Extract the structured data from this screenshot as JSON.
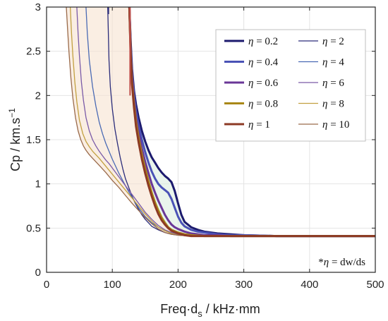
{
  "chart_data": {
    "type": "line",
    "xlabel_main": "Freq·d",
    "xlabel_sub": "s",
    "xlabel_rest": " / kHz·mm",
    "ylabel_main": "Cp / km.s",
    "ylabel_sup": "−1",
    "xlim": [
      0,
      500
    ],
    "ylim": [
      0,
      3
    ],
    "xticks": [
      "0",
      "100",
      "200",
      "300",
      "400",
      "500"
    ],
    "yticks": [
      "0",
      "0.5",
      "1",
      "1.5",
      "2",
      "2.5",
      "3"
    ],
    "grid": true,
    "legend_position": "top-right",
    "annotation": {
      "prefix": "*",
      "symbol": "η",
      "text": " = dw/ds"
    },
    "series": [
      {
        "name": "η = 0.2",
        "eta": "0.2",
        "color": "#1c1a6e",
        "width": 3.0,
        "x": [
          126,
          128,
          130,
          133,
          136,
          140,
          145,
          150,
          155,
          160,
          165,
          170,
          175,
          180,
          185,
          190,
          195,
          200,
          205,
          210,
          220,
          230,
          240,
          250,
          260,
          280,
          300,
          350,
          400,
          450,
          500
        ],
        "y": [
          3.0,
          2.6,
          2.3,
          2.05,
          1.9,
          1.75,
          1.6,
          1.48,
          1.38,
          1.3,
          1.24,
          1.18,
          1.13,
          1.09,
          1.06,
          1.02,
          0.92,
          0.78,
          0.65,
          0.57,
          0.51,
          0.48,
          0.46,
          0.45,
          0.44,
          0.43,
          0.42,
          0.41,
          0.41,
          0.41,
          0.41
        ]
      },
      {
        "name": "η = 0.4",
        "eta": "0.4",
        "color": "#4a52b6",
        "width": 3.0,
        "x": [
          126,
          128,
          130,
          133,
          136,
          140,
          145,
          150,
          155,
          160,
          165,
          170,
          175,
          180,
          185,
          190,
          195,
          200,
          205,
          210,
          220,
          230,
          240,
          260,
          280,
          300,
          350,
          400,
          450,
          500
        ],
        "y": [
          3.0,
          2.55,
          2.25,
          2.0,
          1.82,
          1.66,
          1.5,
          1.36,
          1.24,
          1.14,
          1.06,
          1.0,
          0.96,
          0.93,
          0.9,
          0.83,
          0.73,
          0.63,
          0.56,
          0.52,
          0.48,
          0.46,
          0.45,
          0.43,
          0.42,
          0.42,
          0.41,
          0.41,
          0.41,
          0.41
        ]
      },
      {
        "name": "η = 0.6",
        "eta": "0.6",
        "color": "#6a3797",
        "width": 3.0,
        "x": [
          126,
          128,
          130,
          133,
          136,
          140,
          145,
          150,
          155,
          160,
          165,
          170,
          175,
          180,
          185,
          190,
          195,
          200,
          210,
          220,
          230,
          240,
          260,
          280,
          300,
          350,
          400,
          450,
          500
        ],
        "y": [
          3.0,
          2.5,
          2.2,
          1.95,
          1.75,
          1.58,
          1.4,
          1.25,
          1.12,
          1.0,
          0.9,
          0.81,
          0.73,
          0.65,
          0.59,
          0.54,
          0.51,
          0.49,
          0.46,
          0.44,
          0.43,
          0.42,
          0.42,
          0.41,
          0.41,
          0.41,
          0.41,
          0.41,
          0.41
        ]
      },
      {
        "name": "η = 0.8",
        "eta": "0.8",
        "color": "#a98818",
        "width": 3.0,
        "x": [
          126,
          128,
          130,
          133,
          136,
          140,
          145,
          150,
          155,
          160,
          165,
          170,
          175,
          180,
          185,
          190,
          200,
          210,
          220,
          240,
          260,
          300,
          350,
          400,
          450,
          500
        ],
        "y": [
          3.0,
          2.45,
          2.15,
          1.9,
          1.7,
          1.52,
          1.33,
          1.17,
          1.03,
          0.9,
          0.79,
          0.7,
          0.62,
          0.56,
          0.51,
          0.48,
          0.45,
          0.43,
          0.42,
          0.41,
          0.41,
          0.41,
          0.41,
          0.41,
          0.41,
          0.41
        ]
      },
      {
        "name": "η = 1",
        "eta": "1",
        "color": "#8c3a24",
        "width": 3.0,
        "x": [
          126,
          128,
          130,
          133,
          136,
          140,
          145,
          150,
          155,
          160,
          165,
          170,
          175,
          180,
          185,
          190,
          200,
          210,
          220,
          240,
          260,
          300,
          350,
          400,
          450,
          500
        ],
        "y": [
          3.0,
          2.42,
          2.12,
          1.86,
          1.65,
          1.47,
          1.28,
          1.12,
          0.98,
          0.86,
          0.75,
          0.66,
          0.59,
          0.54,
          0.5,
          0.47,
          0.44,
          0.42,
          0.41,
          0.41,
          0.41,
          0.41,
          0.41,
          0.41,
          0.41,
          0.41
        ]
      },
      {
        "name": "η = 2",
        "eta": "2",
        "color": "#2a2c7a",
        "width": 1.3,
        "x": [
          93,
          95,
          97,
          100,
          104,
          108,
          112,
          116,
          120,
          125,
          130,
          135,
          140,
          145,
          150,
          155,
          160,
          170,
          180,
          190,
          200,
          220,
          250,
          300,
          400,
          500
        ],
        "y": [
          3.0,
          2.4,
          2.1,
          1.85,
          1.62,
          1.45,
          1.3,
          1.17,
          1.06,
          0.96,
          0.86,
          0.78,
          0.71,
          0.65,
          0.6,
          0.56,
          0.52,
          0.48,
          0.45,
          0.43,
          0.42,
          0.41,
          0.41,
          0.41,
          0.41,
          0.41
        ]
      },
      {
        "name": "η = 4",
        "eta": "4",
        "color": "#4a6ab4",
        "width": 1.3,
        "x": [
          60,
          62,
          65,
          70,
          75,
          80,
          85,
          90,
          95,
          100,
          105,
          110,
          115,
          120,
          125,
          130,
          135,
          140,
          145,
          150,
          160,
          170,
          180,
          190,
          200,
          220,
          250,
          300,
          400,
          500
        ],
        "y": [
          3.0,
          2.7,
          2.4,
          2.1,
          1.88,
          1.7,
          1.57,
          1.46,
          1.37,
          1.28,
          1.2,
          1.12,
          1.05,
          0.98,
          0.91,
          0.85,
          0.79,
          0.73,
          0.68,
          0.63,
          0.56,
          0.51,
          0.47,
          0.45,
          0.43,
          0.42,
          0.41,
          0.41,
          0.41,
          0.41
        ]
      },
      {
        "name": "η = 6",
        "eta": "6",
        "color": "#7a5aa8",
        "width": 1.3,
        "x": [
          46,
          48,
          50,
          53,
          56,
          60,
          65,
          70,
          75,
          80,
          85,
          90,
          95,
          100,
          110,
          120,
          130,
          140,
          150,
          160,
          170,
          180,
          190,
          200,
          220,
          250,
          300,
          400,
          500
        ],
        "y": [
          3.0,
          2.7,
          2.45,
          2.15,
          1.95,
          1.75,
          1.6,
          1.5,
          1.43,
          1.37,
          1.32,
          1.27,
          1.23,
          1.18,
          1.08,
          0.98,
          0.88,
          0.78,
          0.68,
          0.6,
          0.53,
          0.48,
          0.45,
          0.43,
          0.42,
          0.41,
          0.41,
          0.41,
          0.41
        ]
      },
      {
        "name": "η = 8",
        "eta": "8",
        "color": "#c2a040",
        "width": 1.3,
        "x": [
          36,
          38,
          40,
          43,
          46,
          50,
          55,
          60,
          65,
          70,
          75,
          80,
          90,
          100,
          110,
          120,
          130,
          140,
          150,
          160,
          170,
          180,
          190,
          200,
          220,
          250,
          300,
          400,
          500
        ],
        "y": [
          3.0,
          2.7,
          2.45,
          2.15,
          1.93,
          1.72,
          1.57,
          1.48,
          1.42,
          1.37,
          1.33,
          1.29,
          1.2,
          1.11,
          1.02,
          0.93,
          0.84,
          0.75,
          0.66,
          0.58,
          0.51,
          0.47,
          0.44,
          0.42,
          0.41,
          0.41,
          0.41,
          0.41,
          0.41
        ]
      },
      {
        "name": "η = 10",
        "eta": "10",
        "color": "#9a6a4a",
        "width": 1.3,
        "x": [
          30,
          32,
          34,
          37,
          40,
          44,
          48,
          52,
          56,
          60,
          65,
          70,
          80,
          90,
          100,
          110,
          120,
          130,
          140,
          150,
          160,
          170,
          180,
          190,
          200,
          220,
          250,
          300,
          400,
          500
        ],
        "y": [
          3.0,
          2.75,
          2.5,
          2.2,
          1.97,
          1.75,
          1.6,
          1.5,
          1.43,
          1.38,
          1.33,
          1.29,
          1.21,
          1.13,
          1.04,
          0.96,
          0.87,
          0.78,
          0.7,
          0.62,
          0.55,
          0.49,
          0.45,
          0.43,
          0.42,
          0.41,
          0.41,
          0.41,
          0.41,
          0.41
        ]
      }
    ],
    "vertical_marks": [
      {
        "x": 94,
        "y_from": 2.92,
        "y_to": 3.0,
        "color": "#2a2c7a"
      },
      {
        "x": 127,
        "y_from": 2.0,
        "y_to": 3.0,
        "color": "#c0504d"
      }
    ],
    "shaded_regions": [
      {
        "name": "high-eta-band",
        "fill": "#f7e3d0",
        "opacity": 0.6,
        "upper": "η = 10",
        "lower_x": [
          126,
          128,
          130,
          133,
          136,
          140,
          145,
          150,
          155,
          160,
          165,
          170,
          175,
          180,
          185,
          190,
          200,
          210,
          220,
          240,
          260,
          300,
          350,
          400,
          450,
          500
        ]
      },
      {
        "name": "low-eta-band",
        "fill": "#dcefdf",
        "opacity": 0.6,
        "upper": "η = 0.2",
        "lower": "η = 1"
      }
    ],
    "colors": {
      "axis": "#262626",
      "grid": "#e4e4e4",
      "legend_border": "#bfbfbf"
    }
  }
}
